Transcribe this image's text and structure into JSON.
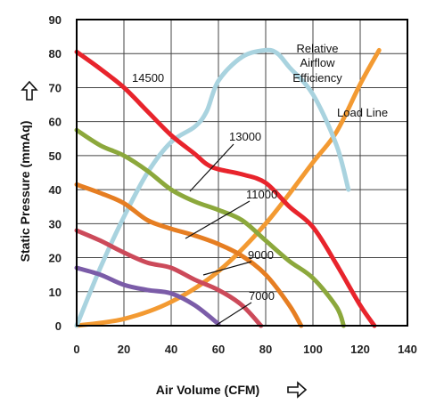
{
  "chart_data": {
    "type": "line",
    "xlabel": "Air Volume (CFM)",
    "ylabel": "Static Pressure (mmAq)",
    "xlim": [
      0,
      140
    ],
    "ylim": [
      0,
      90
    ],
    "x_ticks": [
      0,
      20,
      40,
      60,
      80,
      100,
      120,
      140
    ],
    "y_ticks": [
      0,
      10,
      20,
      30,
      40,
      50,
      60,
      70,
      80,
      90
    ],
    "grid": true,
    "series": [
      {
        "name": "14500",
        "color": "#e8242c",
        "points": [
          [
            0,
            80.5
          ],
          [
            10,
            75.5
          ],
          [
            20,
            70
          ],
          [
            30,
            63
          ],
          [
            40,
            56
          ],
          [
            50,
            50.5
          ],
          [
            55,
            47.5
          ],
          [
            60,
            46
          ],
          [
            70,
            44.5
          ],
          [
            80,
            42
          ],
          [
            90,
            35
          ],
          [
            100,
            29
          ],
          [
            110,
            18
          ],
          [
            120,
            6
          ],
          [
            126,
            0
          ]
        ]
      },
      {
        "name": "13000",
        "color": "#8ca83c",
        "points": [
          [
            0,
            57.5
          ],
          [
            10,
            53
          ],
          [
            20,
            50
          ],
          [
            30,
            45.5
          ],
          [
            40,
            40
          ],
          [
            50,
            36.5
          ],
          [
            60,
            34
          ],
          [
            70,
            31
          ],
          [
            80,
            25
          ],
          [
            90,
            19
          ],
          [
            100,
            14
          ],
          [
            110,
            5.5
          ],
          [
            113,
            0
          ]
        ]
      },
      {
        "name": "11000",
        "color": "#e67e22",
        "points": [
          [
            0,
            41.5
          ],
          [
            10,
            39
          ],
          [
            20,
            36
          ],
          [
            30,
            31
          ],
          [
            40,
            28.5
          ],
          [
            50,
            26.5
          ],
          [
            60,
            24
          ],
          [
            70,
            20.5
          ],
          [
            80,
            15
          ],
          [
            90,
            6
          ],
          [
            95,
            0
          ]
        ]
      },
      {
        "name": "9000",
        "color": "#cc4a5a",
        "points": [
          [
            0,
            28
          ],
          [
            10,
            25
          ],
          [
            20,
            21.5
          ],
          [
            30,
            18.5
          ],
          [
            40,
            17
          ],
          [
            50,
            13.5
          ],
          [
            60,
            10.5
          ],
          [
            70,
            6
          ],
          [
            78,
            0
          ]
        ]
      },
      {
        "name": "7000",
        "color": "#7b5ca8",
        "points": [
          [
            0,
            17
          ],
          [
            10,
            15
          ],
          [
            20,
            12
          ],
          [
            30,
            10.5
          ],
          [
            40,
            9.5
          ],
          [
            50,
            6
          ],
          [
            60,
            0.5
          ]
        ]
      },
      {
        "name": "Relative Airflow Efficiency",
        "color": "#a9d3df",
        "points": [
          [
            0,
            0
          ],
          [
            10,
            17
          ],
          [
            20,
            32
          ],
          [
            30,
            45
          ],
          [
            40,
            54
          ],
          [
            50,
            58.5
          ],
          [
            55,
            63
          ],
          [
            60,
            72
          ],
          [
            70,
            79
          ],
          [
            80,
            81
          ],
          [
            85,
            80
          ],
          [
            90,
            76
          ],
          [
            100,
            68
          ],
          [
            110,
            53
          ],
          [
            115,
            40
          ]
        ]
      },
      {
        "name": "Load Line",
        "color": "#f39a32",
        "points": [
          [
            0,
            0
          ],
          [
            20,
            2
          ],
          [
            40,
            7
          ],
          [
            60,
            16
          ],
          [
            80,
            30
          ],
          [
            100,
            48
          ],
          [
            110,
            57
          ],
          [
            120,
            71
          ],
          [
            128,
            81
          ]
        ]
      }
    ],
    "annotations": [
      {
        "text": "14500"
      },
      {
        "text": "13000"
      },
      {
        "text": "11000"
      },
      {
        "text": "9000"
      },
      {
        "text": "7000"
      },
      {
        "text": "Relative"
      },
      {
        "text": "Airflow"
      },
      {
        "text": "Efficiency"
      },
      {
        "text": "Load Line"
      }
    ]
  }
}
